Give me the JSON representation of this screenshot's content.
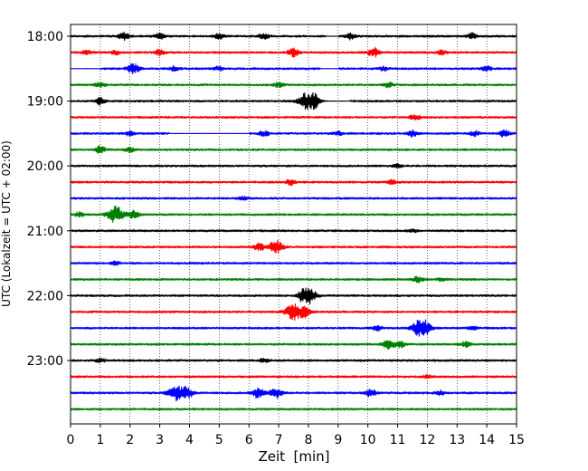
{
  "chart_data": {
    "type": "line",
    "xlabel": "Zeit  [min]",
    "ylabel": "UTC (Lokalzeit = UTC + 02:00)",
    "xlim": [
      0,
      15
    ],
    "x_ticks": [
      "0",
      "1",
      "2",
      "3",
      "4",
      "5",
      "6",
      "7",
      "8",
      "9",
      "10",
      "11",
      "12",
      "13",
      "14",
      "15"
    ],
    "y_ticks": [
      "18:00",
      "19:00",
      "20:00",
      "21:00",
      "22:00",
      "23:00"
    ],
    "vertical_grid": "dotted",
    "trace_colors": [
      "#000000",
      "#ff0000",
      "#0000ff",
      "#008000"
    ],
    "traces": [
      {
        "start": "18:00",
        "bursts": [
          [
            1.8,
            0.6
          ],
          [
            3.0,
            0.5
          ],
          [
            5.0,
            0.5
          ],
          [
            6.5,
            0.5
          ],
          [
            9.4,
            0.5
          ],
          [
            13.5,
            0.5
          ]
        ],
        "flat": [
          [
            8.6,
            9.0
          ]
        ]
      },
      {
        "start": "18:15",
        "bursts": [
          [
            0.5,
            0.4
          ],
          [
            1.5,
            0.4
          ],
          [
            3.0,
            0.5
          ],
          [
            7.5,
            0.7
          ],
          [
            10.2,
            0.8
          ],
          [
            12.5,
            0.4
          ]
        ]
      },
      {
        "start": "18:30",
        "bursts": [
          [
            2.1,
            0.9
          ],
          [
            3.5,
            0.4
          ],
          [
            5.0,
            0.4
          ],
          [
            10.5,
            0.4
          ],
          [
            14.0,
            0.4
          ]
        ],
        "flat": [
          [
            0.0,
            1.0
          ],
          [
            8.4,
            9.0
          ]
        ]
      },
      {
        "start": "18:45",
        "bursts": [
          [
            1.0,
            0.4
          ],
          [
            7.0,
            0.4
          ],
          [
            10.7,
            0.4
          ]
        ]
      },
      {
        "start": "19:00",
        "bursts": [
          [
            1.0,
            0.6
          ],
          [
            8.05,
            2.2
          ]
        ],
        "flat": [
          [
            8.3,
            9.4
          ]
        ]
      },
      {
        "start": "19:15",
        "bursts": [
          [
            11.6,
            0.5
          ]
        ]
      },
      {
        "start": "19:30",
        "bursts": [
          [
            2.0,
            0.4
          ],
          [
            6.5,
            0.5
          ],
          [
            9.0,
            0.4
          ],
          [
            11.5,
            0.5
          ],
          [
            13.6,
            0.4
          ],
          [
            14.6,
            0.6
          ]
        ],
        "flat": [
          [
            3.3,
            6.0
          ]
        ]
      },
      {
        "start": "19:45",
        "bursts": [
          [
            1.0,
            0.6
          ],
          [
            2.0,
            0.4
          ]
        ]
      },
      {
        "start": "20:00",
        "bursts": [
          [
            11.0,
            0.3
          ]
        ]
      },
      {
        "start": "20:15",
        "bursts": [
          [
            7.4,
            0.5
          ],
          [
            10.8,
            0.4
          ]
        ]
      },
      {
        "start": "20:30",
        "bursts": [
          [
            5.8,
            0.3
          ]
        ]
      },
      {
        "start": "20:45",
        "bursts": [
          [
            1.5,
            1.6
          ],
          [
            2.1,
            0.7
          ],
          [
            0.3,
            0.4
          ]
        ]
      },
      {
        "start": "21:00",
        "bursts": [
          [
            11.5,
            0.3
          ]
        ]
      },
      {
        "start": "21:15",
        "bursts": [
          [
            6.9,
            1.2
          ],
          [
            6.35,
            0.7
          ]
        ]
      },
      {
        "start": "21:30",
        "bursts": [
          [
            1.5,
            0.3
          ]
        ]
      },
      {
        "start": "21:45",
        "bursts": [
          [
            11.7,
            0.6
          ],
          [
            12.5,
            0.3
          ]
        ]
      },
      {
        "start": "22:00",
        "bursts": [
          [
            8.0,
            1.5
          ],
          [
            7.8,
            0.6
          ]
        ]
      },
      {
        "start": "22:15",
        "bursts": [
          [
            7.5,
            1.6
          ],
          [
            7.9,
            0.8
          ]
        ]
      },
      {
        "start": "22:30",
        "bursts": [
          [
            11.8,
            1.9
          ],
          [
            10.3,
            0.4
          ],
          [
            13.5,
            0.3
          ]
        ]
      },
      {
        "start": "22:45",
        "bursts": [
          [
            10.7,
            0.8
          ],
          [
            11.1,
            0.5
          ],
          [
            13.3,
            0.5
          ]
        ]
      },
      {
        "start": "23:00",
        "bursts": [
          [
            1.0,
            0.4
          ],
          [
            6.5,
            0.3
          ]
        ]
      },
      {
        "start": "23:15",
        "bursts": [
          [
            12.0,
            0.3
          ]
        ]
      },
      {
        "start": "23:30",
        "bursts": [
          [
            3.5,
            1.3
          ],
          [
            3.9,
            1.1
          ],
          [
            6.3,
            0.9
          ],
          [
            6.9,
            0.9
          ],
          [
            10.1,
            0.6
          ],
          [
            12.4,
            0.4
          ]
        ]
      },
      {
        "start": "23:45",
        "bursts": []
      }
    ]
  }
}
